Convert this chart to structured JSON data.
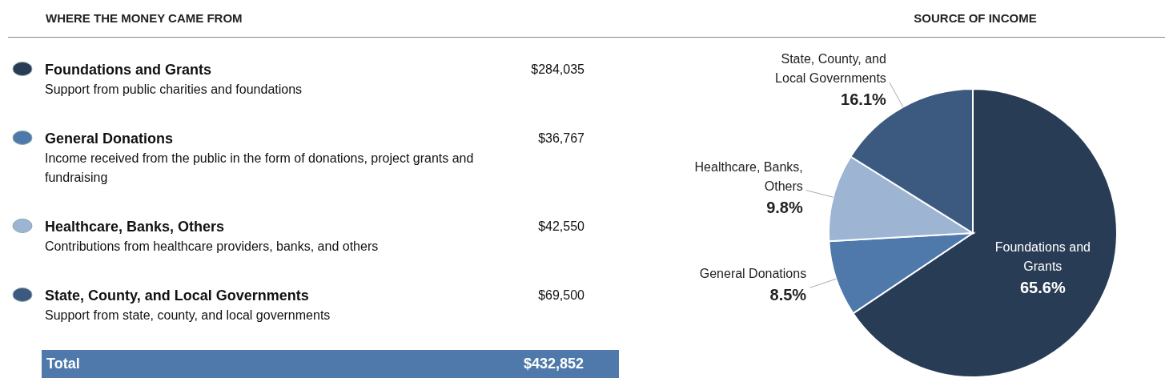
{
  "chart_data": [
    {
      "type": "other",
      "title": "WHERE THE MONEY CAME FROM",
      "categories": [
        "Foundations and Grants",
        "General Donations",
        "Healthcare, Banks, Others",
        "State, County, and Local Governments"
      ],
      "colors": [
        "#283c55",
        "#4e79aa",
        "#9db5d3",
        "#3c5a80"
      ],
      "value_labels": [
        "$284,035",
        "$36,767",
        "$42,550",
        "$69,500"
      ],
      "annotations": [
        "Support from public charities and foundations",
        "Income received from the public in the form of donations, project grants and fundraising",
        "Contributions from healthcare providers, banks, and others",
        "Support from state, county, and local governments",
        "Total"
      ],
      "totals": [
        "$432,852"
      ]
    },
    {
      "type": "pie",
      "title": "SOURCE OF INCOME",
      "categories": [
        "Foundations and Grants",
        "General Donations",
        "Healthcare, Banks, Others",
        "State, County, and Local Governments"
      ],
      "values": [
        65.6,
        8.5,
        9.8,
        16.1
      ],
      "colors": [
        "#283c55",
        "#4e79aa",
        "#9db5d3",
        "#3c5a80"
      ],
      "value_labels": [
        "65.6%",
        "8.5%",
        "9.8%",
        "16.1%"
      ]
    }
  ]
}
